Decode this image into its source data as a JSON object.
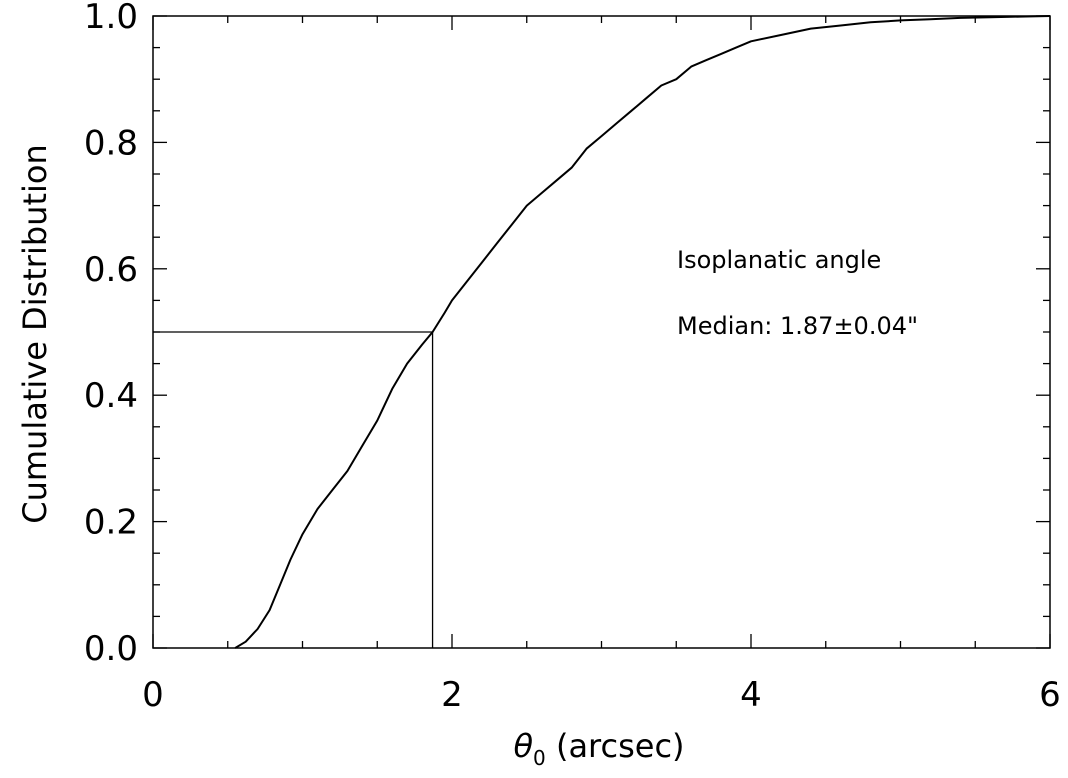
{
  "chart_data": {
    "type": "line",
    "title": "",
    "xlabel": {
      "symbol": "θ",
      "subscript": "0",
      "rest": " (arcsec)"
    },
    "ylabel": "Cumulative Distribution",
    "xlim": [
      0,
      6
    ],
    "ylim": [
      0,
      1.0
    ],
    "x_ticks": [
      "0",
      "2",
      "4",
      "6"
    ],
    "y_ticks": [
      "0.0",
      "0.2",
      "0.4",
      "0.6",
      "0.8",
      "1.0"
    ],
    "grid": false,
    "series": [
      {
        "x": [
          0.55,
          0.62,
          0.7,
          0.78,
          0.85,
          0.92,
          1.0,
          1.05,
          1.1,
          1.2,
          1.3,
          1.4,
          1.5,
          1.6,
          1.7,
          1.8,
          1.87,
          1.95,
          2.0,
          2.1,
          2.2,
          2.3,
          2.4,
          2.5,
          2.6,
          2.7,
          2.8,
          2.9,
          3.0,
          3.1,
          3.2,
          3.3,
          3.4,
          3.5,
          3.6,
          3.7,
          3.8,
          3.9,
          4.0,
          4.2,
          4.4,
          4.6,
          4.8,
          5.0,
          5.2,
          5.4,
          5.6,
          5.8,
          6.0
        ],
        "y": [
          0.0,
          0.01,
          0.03,
          0.06,
          0.1,
          0.14,
          0.18,
          0.2,
          0.22,
          0.25,
          0.28,
          0.32,
          0.36,
          0.41,
          0.45,
          0.48,
          0.5,
          0.53,
          0.55,
          0.58,
          0.61,
          0.64,
          0.67,
          0.7,
          0.72,
          0.74,
          0.76,
          0.79,
          0.81,
          0.83,
          0.85,
          0.87,
          0.89,
          0.9,
          0.92,
          0.93,
          0.94,
          0.95,
          0.96,
          0.97,
          0.98,
          0.985,
          0.99,
          0.993,
          0.995,
          0.997,
          0.998,
          0.999,
          1.0
        ]
      }
    ],
    "median_marker": {
      "x": 1.87,
      "y": 0.5
    },
    "annotations": [
      "Isoplanatic angle",
      "Median: 1.87±0.04\""
    ]
  }
}
